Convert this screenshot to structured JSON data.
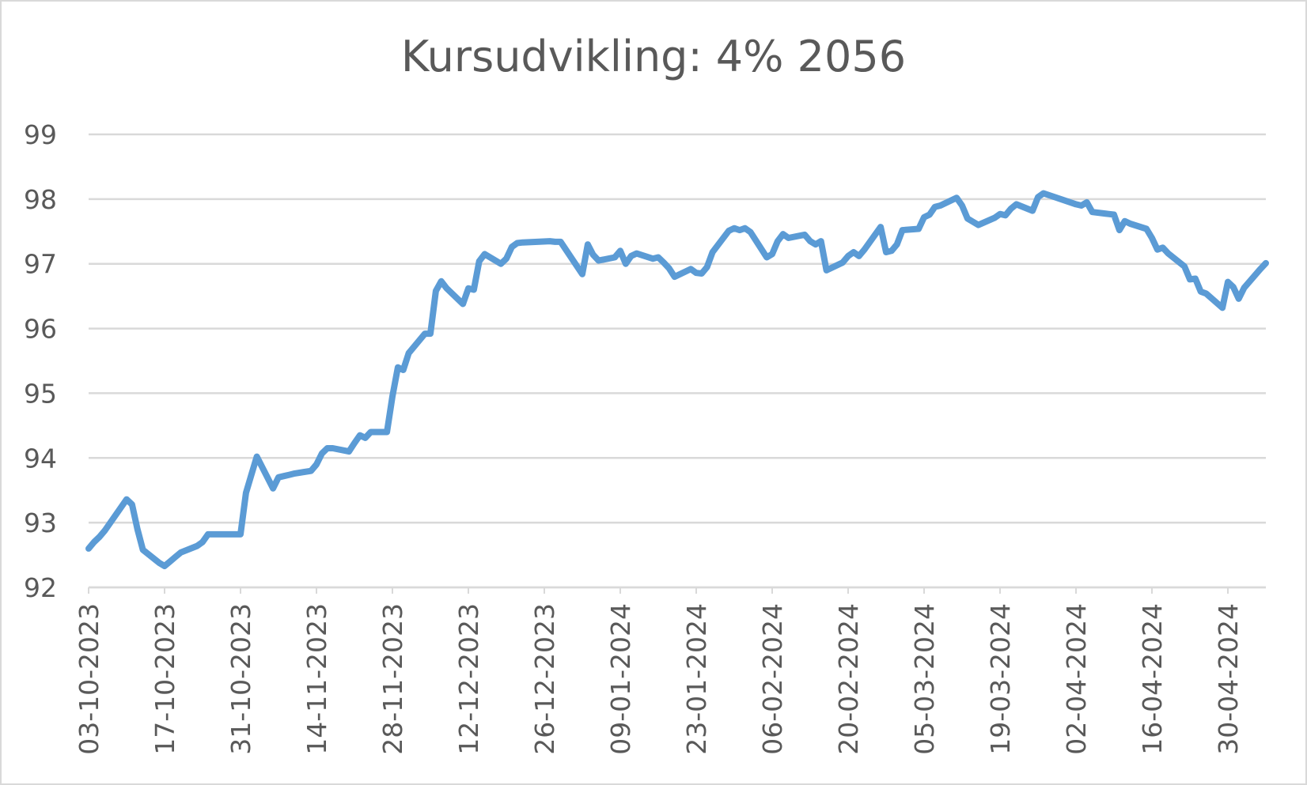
{
  "chart_data": {
    "type": "line",
    "title": "Kursudvikling: 4% 2056",
    "xlabel": "",
    "ylabel": "",
    "ylim": [
      92,
      99
    ],
    "yticks": [
      "92",
      "93",
      "94",
      "95",
      "96",
      "97",
      "98",
      "99"
    ],
    "xtick_labels": [
      "03-10-2023",
      "17-10-2023",
      "31-10-2023",
      "14-11-2023",
      "28-11-2023",
      "12-12-2023",
      "26-12-2023",
      "09-01-2024",
      "23-01-2024",
      "06-02-2024",
      "20-02-2024",
      "05-03-2024",
      "19-03-2024",
      "02-04-2024",
      "16-04-2024",
      "30-04-2024"
    ],
    "grid": true,
    "legend": "none",
    "color": "#5b9bd5",
    "series": [
      {
        "x": [
          "03-10-2023",
          "04-10-2023",
          "05-10-2023",
          "06-10-2023",
          "10-10-2023",
          "11-10-2023",
          "12-10-2023",
          "13-10-2023",
          "16-10-2023",
          "17-10-2023",
          "18-10-2023",
          "19-10-2023",
          "20-10-2023",
          "23-10-2023",
          "24-10-2023",
          "25-10-2023",
          "26-10-2023",
          "27-10-2023",
          "30-10-2023",
          "31-10-2023",
          "01-11-2023",
          "02-11-2023",
          "03-11-2023",
          "06-11-2023",
          "07-11-2023",
          "08-11-2023",
          "09-11-2023",
          "10-11-2023",
          "13-11-2023",
          "14-11-2023",
          "15-11-2023",
          "16-11-2023",
          "17-11-2023",
          "20-11-2023",
          "21-11-2023",
          "22-11-2023",
          "23-11-2023",
          "24-11-2023",
          "27-11-2023",
          "28-11-2023",
          "29-11-2023",
          "30-11-2023",
          "01-12-2023",
          "04-12-2023",
          "05-12-2023",
          "06-12-2023",
          "07-12-2023",
          "08-12-2023",
          "11-12-2023",
          "12-12-2023",
          "13-12-2023",
          "14-12-2023",
          "15-12-2023",
          "18-12-2023",
          "19-12-2023",
          "20-12-2023",
          "21-12-2023",
          "22-12-2023",
          "27-12-2023",
          "28-12-2023",
          "29-12-2023",
          "02-01-2024",
          "03-01-2024",
          "04-01-2024",
          "05-01-2024",
          "08-01-2024",
          "09-01-2024",
          "10-01-2024",
          "11-01-2024",
          "12-01-2024",
          "15-01-2024",
          "16-01-2024",
          "17-01-2024",
          "18-01-2024",
          "19-01-2024",
          "22-01-2024",
          "23-01-2024",
          "24-01-2024",
          "25-01-2024",
          "26-01-2024",
          "29-01-2024",
          "30-01-2024",
          "31-01-2024",
          "01-02-2024",
          "02-02-2024",
          "05-02-2024",
          "06-02-2024",
          "07-02-2024",
          "08-02-2024",
          "09-02-2024",
          "12-02-2024",
          "13-02-2024",
          "14-02-2024",
          "15-02-2024",
          "16-02-2024",
          "19-02-2024",
          "20-02-2024",
          "21-02-2024",
          "22-02-2024",
          "23-02-2024",
          "26-02-2024",
          "27-02-2024",
          "28-02-2024",
          "29-02-2024",
          "01-03-2024",
          "04-03-2024",
          "05-03-2024",
          "06-03-2024",
          "07-03-2024",
          "08-03-2024",
          "11-03-2024",
          "12-03-2024",
          "13-03-2024",
          "14-03-2024",
          "15-03-2024",
          "18-03-2024",
          "19-03-2024",
          "20-03-2024",
          "21-03-2024",
          "22-03-2024",
          "25-03-2024",
          "26-03-2024",
          "27-03-2024",
          "02-04-2024",
          "03-04-2024",
          "04-04-2024",
          "05-04-2024",
          "08-04-2024",
          "09-04-2024",
          "10-04-2024",
          "11-04-2024",
          "12-04-2024",
          "15-04-2024",
          "16-04-2024",
          "17-04-2024",
          "18-04-2024",
          "19-04-2024",
          "22-04-2024",
          "23-04-2024",
          "24-04-2024",
          "25-04-2024",
          "26-04-2024",
          "29-04-2024",
          "30-04-2024",
          "01-05-2024",
          "02-05-2024",
          "03-05-2024",
          "06-05-2024",
          "07-05-2024"
        ],
        "values": [
          92.6,
          92.7,
          92.78,
          92.88,
          93.36,
          93.28,
          92.9,
          92.58,
          92.38,
          92.33,
          92.4,
          92.47,
          92.54,
          92.64,
          92.7,
          92.82,
          92.82,
          92.82,
          92.82,
          92.82,
          93.46,
          93.74,
          94.02,
          93.53,
          93.7,
          93.72,
          93.74,
          93.76,
          93.8,
          93.9,
          94.07,
          94.15,
          94.15,
          94.1,
          94.23,
          94.35,
          94.31,
          94.4,
          94.4,
          94.95,
          95.4,
          95.36,
          95.62,
          95.92,
          95.92,
          96.58,
          96.73,
          96.62,
          96.38,
          96.62,
          96.6,
          97.04,
          97.15,
          97.0,
          97.08,
          97.26,
          97.32,
          97.33,
          97.35,
          97.34,
          97.34,
          96.84,
          97.3,
          97.14,
          97.05,
          97.1,
          97.2,
          97.0,
          97.12,
          97.16,
          97.08,
          97.1,
          97.02,
          96.93,
          96.8,
          96.92,
          96.86,
          96.85,
          96.95,
          97.18,
          97.51,
          97.55,
          97.52,
          97.55,
          97.49,
          97.1,
          97.15,
          97.35,
          97.46,
          97.4,
          97.45,
          97.35,
          97.3,
          97.35,
          96.9,
          97.02,
          97.12,
          97.18,
          97.12,
          97.22,
          97.57,
          97.18,
          97.2,
          97.3,
          97.52,
          97.54,
          97.72,
          97.76,
          97.88,
          97.9,
          98.02,
          97.9,
          97.7,
          97.65,
          97.6,
          97.71,
          97.77,
          97.75,
          97.85,
          97.92,
          97.82,
          98.03,
          98.09,
          97.92,
          97.9,
          97.95,
          97.8,
          97.77,
          97.76,
          97.52,
          97.66,
          97.62,
          97.54,
          97.4,
          97.22,
          97.25,
          97.16,
          96.96,
          96.76,
          96.77,
          96.57,
          96.54,
          96.32,
          96.72,
          96.64,
          96.46,
          96.63,
          96.92,
          97.01
        ],
        "name": ""
      }
    ]
  }
}
